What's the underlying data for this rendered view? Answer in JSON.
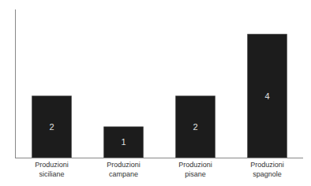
{
  "chart_data": {
    "type": "bar",
    "categories": [
      "Produzioni\nsiciliane",
      "Produzioni\ncampane",
      "Produzioni\npisane",
      "Produzioni\nspagnole"
    ],
    "values": [
      2,
      1,
      2,
      4
    ],
    "color": "#1c1c1c",
    "ylim": [
      0,
      4.8
    ],
    "grid": false,
    "data_labels": true,
    "tick_labels": "x"
  }
}
